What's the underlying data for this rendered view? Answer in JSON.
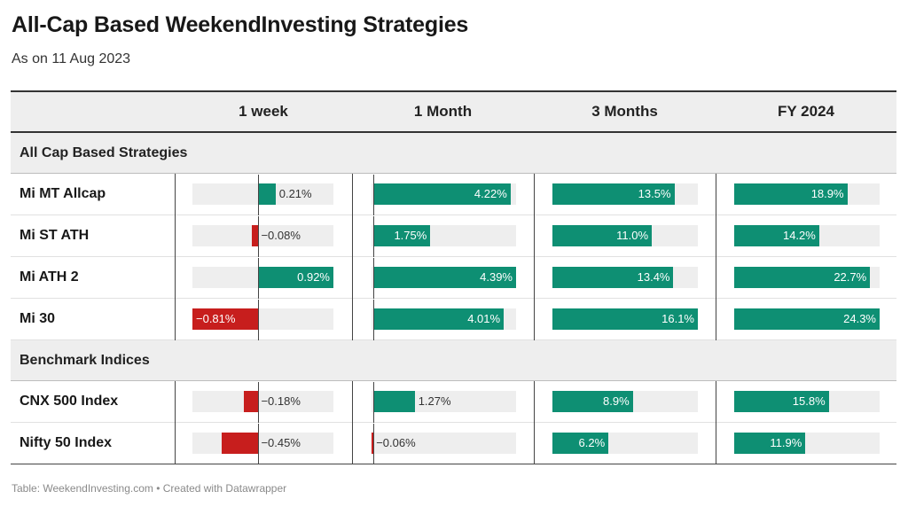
{
  "title": "All-Cap Based WeekendInvesting Strategies",
  "subtitle": "As on 11 Aug 2023",
  "footer": "Table: WeekendInvesting.com • Created with Datawrapper",
  "colors": {
    "positive": "#0e8f73",
    "negative": "#c71e1d",
    "track": "#eeeeee",
    "header_bg": "#eeeeee"
  },
  "chart_data": {
    "type": "table",
    "columns": [
      "1 week",
      "1 Month",
      "3 Months",
      "FY 2024"
    ],
    "groups": [
      {
        "label": "All Cap Based Strategies",
        "rows": [
          {
            "name": "Mi MT Allcap",
            "values": [
              0.21,
              4.22,
              13.5,
              18.9
            ],
            "labels": [
              "0.21%",
              "4.22%",
              "13.5%",
              "18.9%"
            ]
          },
          {
            "name": "Mi ST ATH",
            "values": [
              -0.08,
              1.75,
              11.0,
              14.2
            ],
            "labels": [
              "−0.08%",
              "1.75%",
              "11.0%",
              "14.2%"
            ]
          },
          {
            "name": "Mi ATH 2",
            "values": [
              0.92,
              4.39,
              13.4,
              22.7
            ],
            "labels": [
              "0.92%",
              "4.39%",
              "13.4%",
              "22.7%"
            ]
          },
          {
            "name": "Mi 30",
            "values": [
              -0.81,
              4.01,
              16.1,
              24.3
            ],
            "labels": [
              "−0.81%",
              "4.01%",
              "16.1%",
              "24.3%"
            ]
          }
        ]
      },
      {
        "label": "Benchmark Indices",
        "rows": [
          {
            "name": "CNX 500 Index",
            "values": [
              -0.18,
              1.27,
              8.9,
              15.8
            ],
            "labels": [
              "−0.18%",
              "1.27%",
              "8.9%",
              "15.8%"
            ]
          },
          {
            "name": "Nifty 50 Index",
            "values": [
              -0.45,
              -0.06,
              6.2,
              11.9
            ],
            "labels": [
              "−0.45%",
              "−0.06%",
              "6.2%",
              "11.9%"
            ]
          }
        ]
      }
    ],
    "column_ranges": [
      [
        -0.81,
        0.92
      ],
      [
        -0.06,
        4.39
      ],
      [
        0,
        16.1
      ],
      [
        0,
        24.3
      ]
    ]
  }
}
